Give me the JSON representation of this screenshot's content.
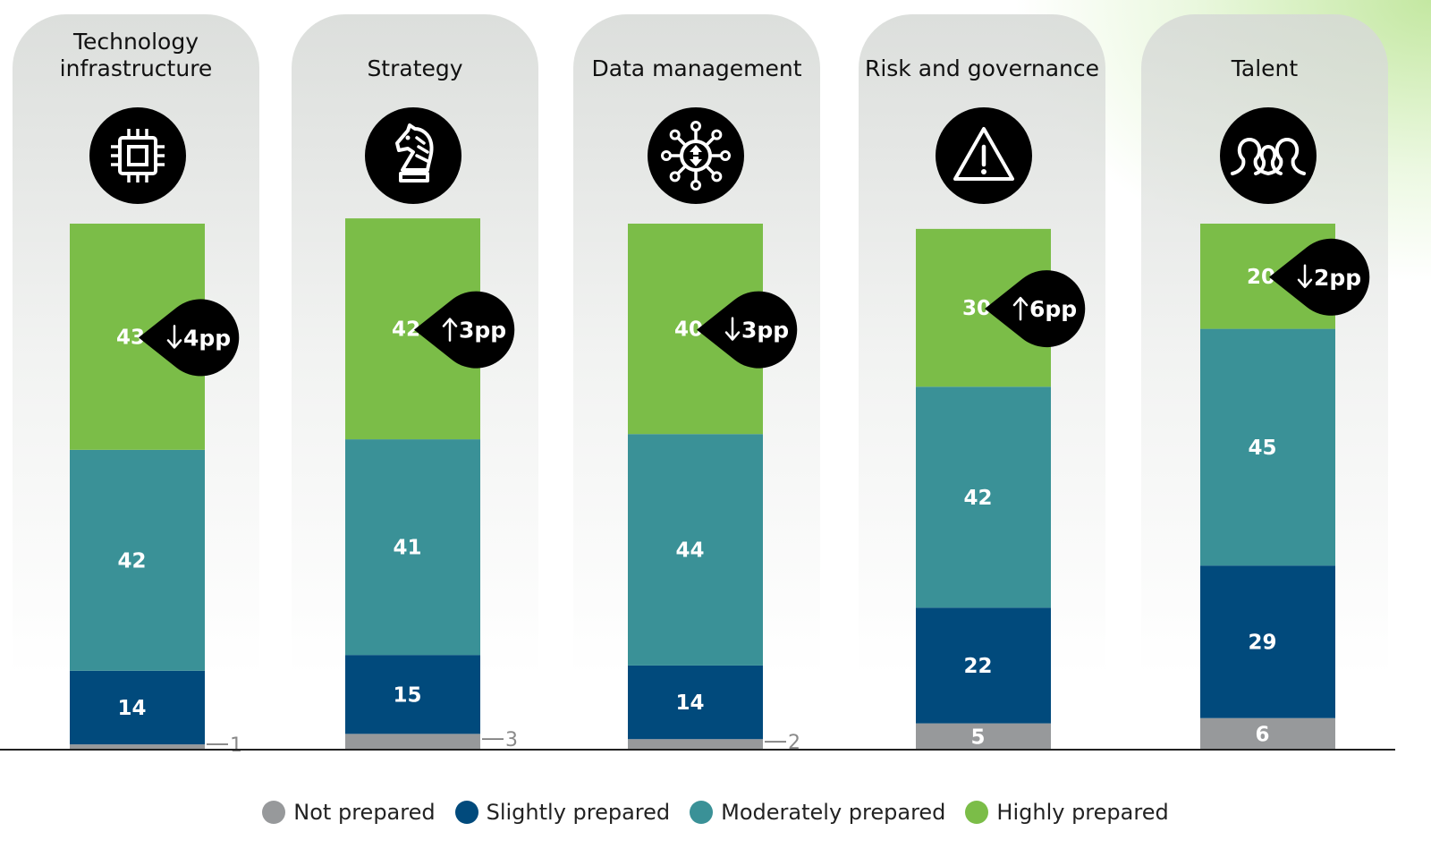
{
  "chart_data": {
    "type": "bar",
    "stacked": true,
    "categories": [
      "Technology\ninfrastructure",
      "Strategy",
      "Data management",
      "Risk and governance",
      "Talent"
    ],
    "series": [
      {
        "name": "Not prepared",
        "color": "#97999b",
        "values": [
          1,
          3,
          2,
          5,
          6
        ]
      },
      {
        "name": "Slightly prepared",
        "color": "#014a7c",
        "values": [
          14,
          15,
          14,
          22,
          29
        ]
      },
      {
        "name": "Moderately prepared",
        "color": "#3a9197",
        "values": [
          42,
          41,
          44,
          42,
          45
        ]
      },
      {
        "name": "Highly prepared",
        "color": "#7bbd48",
        "values": [
          43,
          42,
          40,
          30,
          20
        ]
      }
    ],
    "changes": [
      {
        "direction": "down",
        "text": "4pp"
      },
      {
        "direction": "up",
        "text": "3pp"
      },
      {
        "direction": "down",
        "text": "3pp"
      },
      {
        "direction": "up",
        "text": "6pp"
      },
      {
        "direction": "down",
        "text": "2pp"
      }
    ],
    "icons": [
      "chip-icon",
      "chess-knight-icon",
      "data-network-icon",
      "warning-icon",
      "people-icon"
    ],
    "ylim": [
      0,
      100
    ],
    "legend": "bottom-center",
    "grid": false
  }
}
